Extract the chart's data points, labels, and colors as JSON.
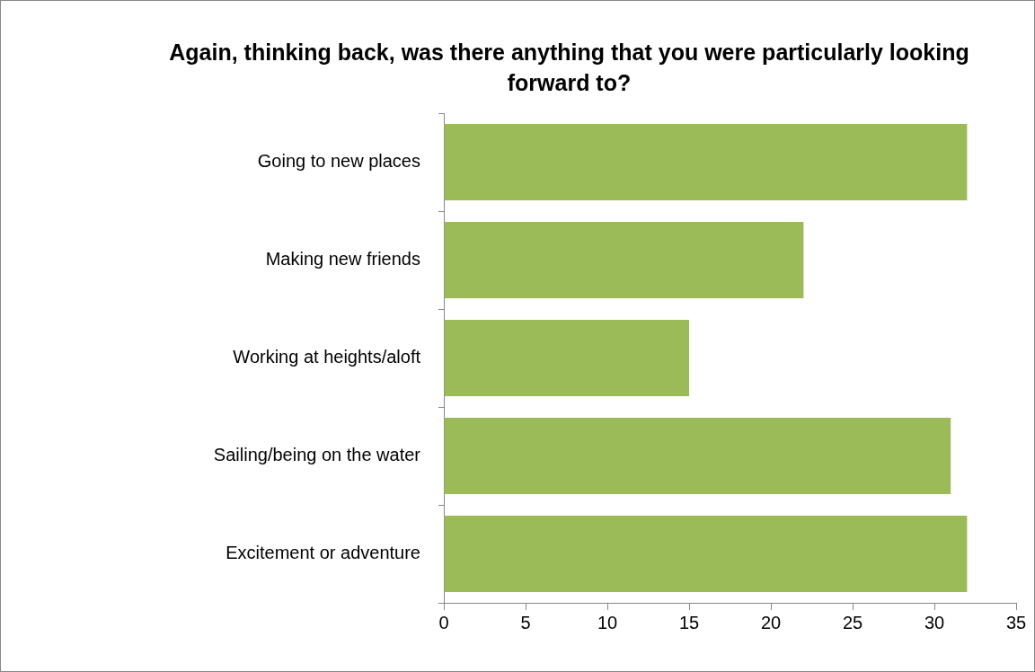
{
  "chart_data": {
    "type": "bar",
    "orientation": "horizontal",
    "title": "Again, thinking back, was there anything that you were particularly looking forward to?",
    "categories": [
      "Going to new places",
      "Making new friends",
      "Working at heights/aloft",
      "Sailing/being on the water",
      "Excitement or adventure"
    ],
    "values": [
      32,
      22,
      15,
      31,
      32
    ],
    "color": "#9bbb59",
    "xlim": [
      0,
      35
    ],
    "xticks": [
      0,
      5,
      10,
      15,
      20,
      25,
      30,
      35
    ],
    "grid": false,
    "legend": false
  }
}
